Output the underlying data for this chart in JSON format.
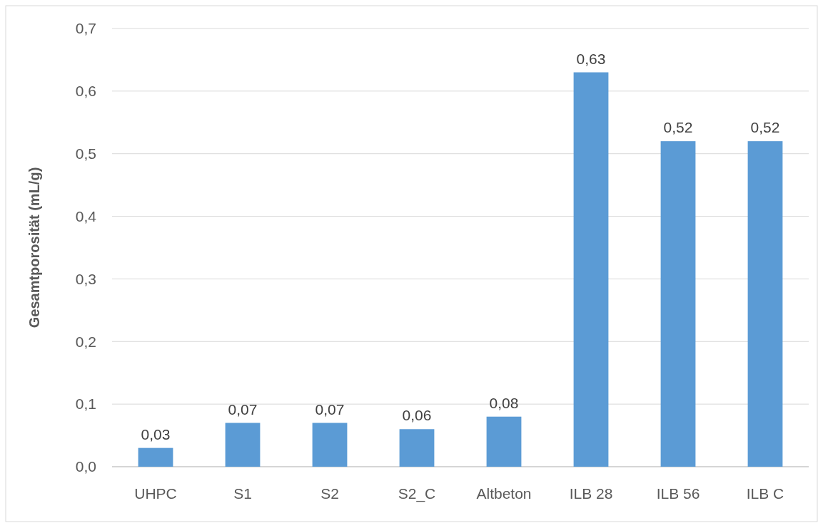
{
  "chart_data": {
    "type": "bar",
    "ylabel": "Gesamtporosität (mL/g)",
    "categories": [
      "UHPC",
      "S1",
      "S2",
      "S2_C",
      "Altbeton",
      "ILB 28",
      "ILB 56",
      "ILB C"
    ],
    "values": [
      0.03,
      0.07,
      0.07,
      0.06,
      0.08,
      0.63,
      0.52,
      0.52
    ],
    "value_labels": [
      "0,03",
      "0,07",
      "0,07",
      "0,06",
      "0,08",
      "0,63",
      "0,52",
      "0,52"
    ],
    "color": "#5b9bd5",
    "ylim": [
      0,
      0.7
    ],
    "yticks": [
      {
        "value": 0,
        "label": "0,0"
      },
      {
        "value": 0.1,
        "label": "0,1"
      },
      {
        "value": 0.2,
        "label": "0,2"
      },
      {
        "value": 0.3,
        "label": "0,3"
      },
      {
        "value": 0.4,
        "label": "0,4"
      },
      {
        "value": 0.5,
        "label": "0,5"
      },
      {
        "value": 0.6,
        "label": "0,6"
      },
      {
        "value": 0.7,
        "label": "0,7"
      }
    ],
    "grid": "y"
  }
}
